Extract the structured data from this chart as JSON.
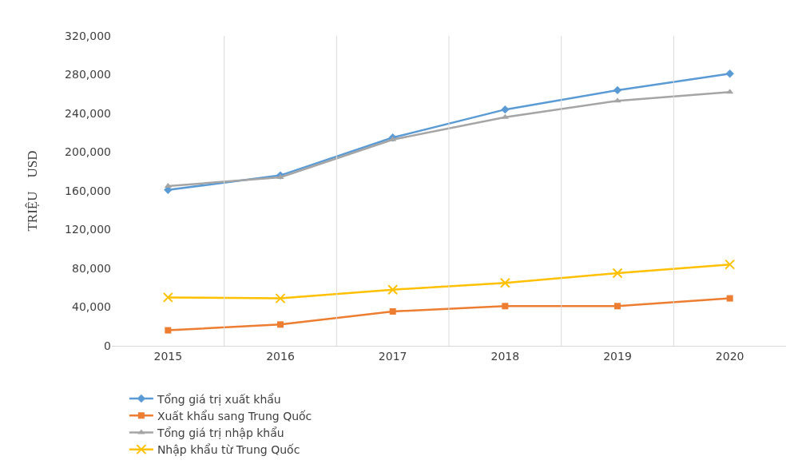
{
  "chart_data": {
    "type": "line",
    "ylabel": "TRIỆU    USD",
    "categories": [
      "2015",
      "2016",
      "2017",
      "2018",
      "2019",
      "2020"
    ],
    "series": [
      {
        "name": "Tổng giá trị xuất khẩu",
        "color": "#5b9bd5",
        "marker": "diamond",
        "values": [
          161000,
          176000,
          215000,
          244000,
          264000,
          281000
        ]
      },
      {
        "name": "Xuất khẩu sang Trung Quốc",
        "color": "#ed7d31",
        "marker": "square",
        "values": [
          16000,
          22000,
          35500,
          41000,
          41000,
          49000
        ]
      },
      {
        "name": "Tổng giá trị nhập khẩu",
        "color": "#a5a5a5",
        "marker": "triangle",
        "values": [
          165000,
          174000,
          213000,
          236000,
          253000,
          262000
        ]
      },
      {
        "name": "Nhập khẩu từ Trung Quốc",
        "color": "#ffc000",
        "marker": "cross",
        "values": [
          50000,
          49000,
          58000,
          65000,
          75000,
          84000
        ]
      }
    ],
    "ylim": [
      0,
      320000
    ],
    "yticks": [
      {
        "value": 0,
        "label": "0"
      },
      {
        "value": 40000,
        "label": "40,000"
      },
      {
        "value": 80000,
        "label": "80,000"
      },
      {
        "value": 120000,
        "label": "120,000"
      },
      {
        "value": 160000,
        "label": "160,000"
      },
      {
        "value": 200000,
        "label": "200,000"
      },
      {
        "value": 240000,
        "label": "240,000"
      },
      {
        "value": 280000,
        "label": "280,000"
      },
      {
        "value": 320000,
        "label": "320,000"
      }
    ],
    "grid": "x",
    "legend": "bottom",
    "line_style": "solid"
  }
}
